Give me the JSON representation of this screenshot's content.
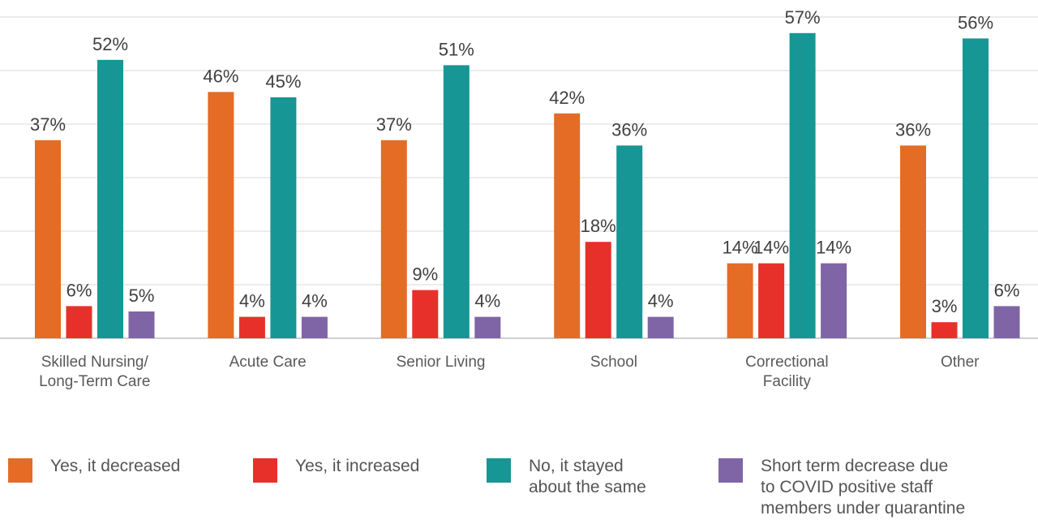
{
  "chart_data": {
    "type": "bar",
    "categories": [
      "Skilled Nursing/\nLong-Term Care",
      "Acute Care",
      "Senior Living",
      "School",
      "Correctional\nFacility",
      "Other"
    ],
    "series": [
      {
        "name": "Yes, it decreased",
        "color": "#E46C25",
        "values": [
          37,
          46,
          37,
          42,
          14,
          36
        ]
      },
      {
        "name": "Yes, it increased",
        "color": "#E8302A",
        "values": [
          6,
          4,
          9,
          18,
          14,
          3
        ]
      },
      {
        "name": "No, it stayed\nabout the same",
        "color": "#169694",
        "values": [
          52,
          45,
          51,
          36,
          57,
          56
        ]
      },
      {
        "name": "Short term decrease due\nto COVID positive staff\nmembers under quarantine",
        "color": "#7F65A6",
        "values": [
          5,
          4,
          4,
          4,
          14,
          6
        ]
      }
    ],
    "value_suffix": "%",
    "ylim": [
      0,
      60
    ],
    "grid": true,
    "legend_position": "bottom"
  }
}
